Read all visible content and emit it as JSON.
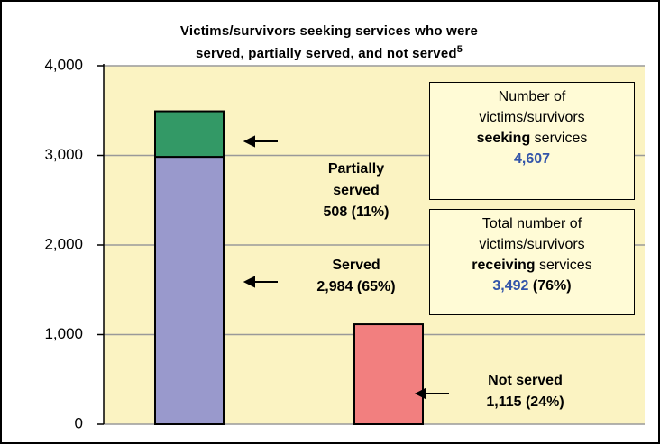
{
  "chart_data": {
    "type": "bar",
    "stacked": true,
    "title": [
      "Victims/survivors seeking services who were",
      "served, partially served, and not served"
    ],
    "title_note": "5",
    "categories": [
      null,
      null
    ],
    "series": [
      {
        "name": "Served",
        "color": "#9999cc",
        "values": [
          2984,
          null
        ],
        "value_labels": [
          "2,984 (65%)",
          null
        ]
      },
      {
        "name": "Partially served",
        "color": "#339966",
        "values": [
          508,
          null
        ],
        "value_labels": [
          "508 (11%)",
          null
        ]
      },
      {
        "name": "Not served",
        "color": "#f27f7f",
        "values": [
          null,
          1115
        ],
        "value_labels": [
          null,
          "1,115 (24%)"
        ]
      }
    ],
    "ylim": [
      0,
      4000
    ],
    "yticks": [
      0,
      {
        "value": 1000,
        "label": "1,000"
      },
      {
        "value": 2000,
        "label": "2,000"
      },
      {
        "value": 3000,
        "label": "3,000"
      },
      {
        "value": 4000,
        "label": "4,000"
      }
    ],
    "grid": true,
    "annotations": [
      {
        "lines": [
          "Number of",
          "victims/survivors"
        ],
        "emphasis": "seeking",
        "text_after": "services",
        "figure": "4,607"
      },
      {
        "lines": [
          "Total number of",
          "victims/survivors"
        ],
        "emphasis": "receiving",
        "text_after": "services",
        "figure": "3,492",
        "figure_note": "(76%)"
      }
    ]
  }
}
